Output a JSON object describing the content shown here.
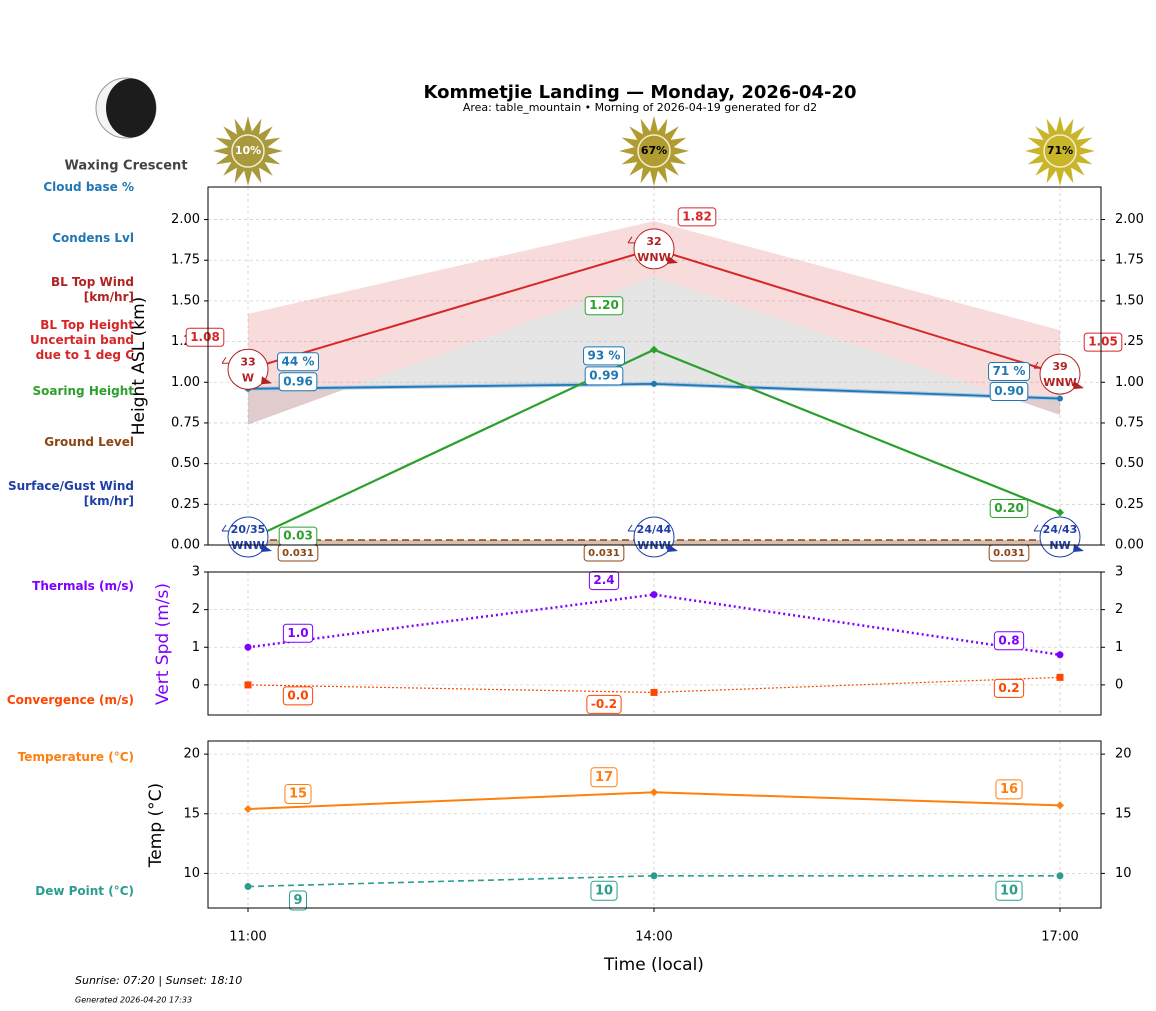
{
  "header": {
    "title": "Kommetjie Landing — Monday, 2026-04-20",
    "subtitle": "Area: table_mountain • Morning of 2026-04-19 generated for d2"
  },
  "moon": {
    "phase": "Waxing Crescent"
  },
  "footer": {
    "sun_times": "Sunrise: 07:20 | Sunset: 18:10",
    "generated": "Generated 2026-04-20 17:33"
  },
  "chart_data": [
    {
      "type": "line",
      "ylabel": "Height ASL (km)",
      "ylim": [
        0,
        2.2
      ],
      "grid": true,
      "yticks": [
        {
          "value": 0,
          "label": "0.00"
        },
        {
          "value": 0.25,
          "label": "0.25"
        },
        {
          "value": 0.5,
          "label": "0.50"
        },
        {
          "value": 0.75,
          "label": "0.75"
        },
        {
          "value": 1,
          "label": "1.00"
        },
        {
          "value": 1.25,
          "label": "1.25"
        },
        {
          "value": 1.5,
          "label": "1.50"
        },
        {
          "value": 1.75,
          "label": "1.75"
        },
        {
          "value": 2,
          "label": "2.00"
        }
      ],
      "sun_rating": {
        "values": [
          10,
          67,
          71
        ],
        "value_labels": [
          "10%",
          "67%",
          "71%"
        ],
        "colors": [
          "#a89a3c",
          "#b09c30",
          "#c9b52a"
        ]
      },
      "series": [
        {
          "name": "Cloud base %",
          "color": "#1f77b4",
          "values": [
            44,
            93,
            71
          ],
          "value_labels": [
            "44 %",
            "93 %",
            "71 %"
          ]
        },
        {
          "name": "Condens Lvl",
          "color": "#1f77b4",
          "values": [
            0.96,
            0.99,
            0.9
          ],
          "value_labels": [
            "0.96",
            "0.99",
            "0.90"
          ]
        },
        {
          "name": "BL Top Wind [km/hr]",
          "color": "#b22222",
          "values": [
            33,
            32,
            39
          ],
          "directions": [
            "W",
            "WNW",
            "WNW"
          ]
        },
        {
          "name": "BL Top Height Uncertain band due to 1 deg C",
          "color": "#d62728",
          "values": [
            1.08,
            1.82,
            1.05
          ],
          "value_labels": [
            "1.08",
            "1.82",
            "1.05"
          ],
          "band_low": [
            0.74,
            1.65,
            0.8
          ],
          "band_high": [
            1.42,
            1.99,
            1.32
          ]
        },
        {
          "name": "Soaring Height",
          "color": "#2ca02c",
          "values": [
            0.03,
            1.2,
            0.2
          ],
          "value_labels": [
            "0.03",
            "1.20",
            "0.20"
          ]
        },
        {
          "name": "Ground Level",
          "color": "#8b4513",
          "values": [
            0.031,
            0.031,
            0.031
          ]
        },
        {
          "name": "Surface/Gust Wind [km/hr]",
          "color": "#1f3fa8",
          "values": [
            20,
            24,
            24
          ],
          "gust": [
            35,
            44,
            43
          ],
          "value_labels": [
            "20/35",
            "24/44",
            "24/43"
          ],
          "directions": [
            "WNW",
            "WNW",
            "NW"
          ]
        }
      ]
    },
    {
      "type": "line",
      "ylabel": "Vert Spd (m/s)",
      "ylim": [
        -0.8,
        3
      ],
      "grid": true,
      "yticks": [
        0,
        1,
        2,
        3
      ],
      "series": [
        {
          "name": "Thermals (m/s)",
          "color": "#8000ff",
          "values": [
            1.0,
            2.4,
            0.8
          ],
          "value_labels": [
            "1.0",
            "2.4",
            "0.8"
          ]
        },
        {
          "name": "Convergence (m/s)",
          "color": "#ff4500",
          "values": [
            0.0,
            -0.2,
            0.2
          ],
          "value_labels": [
            "0.0",
            "-0.2",
            "0.2"
          ]
        }
      ]
    },
    {
      "type": "line",
      "ylabel": "Temp (°C)",
      "xlabel": "Time (local)",
      "categories": [
        "11:00",
        "14:00",
        "17:00"
      ],
      "ylim": [
        7.1,
        21.1
      ],
      "grid": true,
      "yticks": [
        10,
        15,
        20
      ],
      "series": [
        {
          "name": "Temperature (°C)",
          "color": "#ff7f0e",
          "values": [
            15.4,
            16.8,
            15.7
          ],
          "value_labels": [
            "15",
            "17",
            "16"
          ]
        },
        {
          "name": "Dew Point (°C)",
          "color": "#2a9d8f",
          "values": [
            8.9,
            9.8,
            9.8
          ],
          "value_labels": [
            "9",
            "10",
            "10"
          ]
        }
      ]
    }
  ]
}
